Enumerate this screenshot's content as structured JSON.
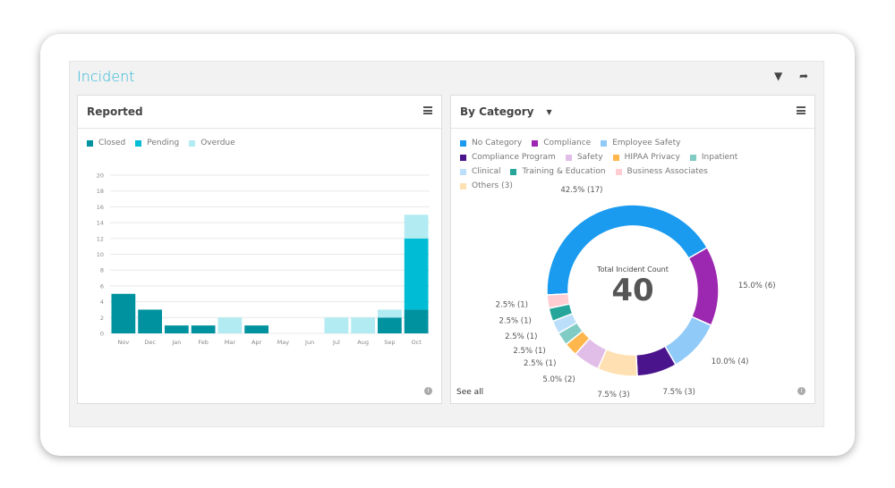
{
  "title": "Incident",
  "icons": {
    "filter": "filter-icon",
    "share": "share-icon"
  },
  "left": {
    "title": "Reported",
    "legend": [
      {
        "label": "Closed",
        "color": "#00929f"
      },
      {
        "label": "Pending",
        "color": "#00bcd4"
      },
      {
        "label": "Overdue",
        "color": "#b2ebf2"
      }
    ]
  },
  "right": {
    "title": "By Category",
    "see_all": "See all",
    "center_label": "Total Incident Count",
    "total": "40",
    "legend": [
      {
        "label": "No Category",
        "color": "#1a9bf0"
      },
      {
        "label": "Compliance",
        "color": "#9c27b0"
      },
      {
        "label": "Employee Safety",
        "color": "#90caf9"
      },
      {
        "label": "Compliance Program",
        "color": "#4a148c"
      },
      {
        "label": "Safety",
        "color": "#e1bee7"
      },
      {
        "label": "HIPAA Privacy",
        "color": "#ffb74d"
      },
      {
        "label": "Inpatient",
        "color": "#80cbc4"
      },
      {
        "label": "Clinical",
        "color": "#bbdefb"
      },
      {
        "label": "Training & Education",
        "color": "#26a69a"
      },
      {
        "label": "Business Associates",
        "color": "#ffcdd2"
      },
      {
        "label": "Others (3)",
        "color": "#ffe0b2"
      }
    ]
  },
  "chart_data": [
    {
      "type": "bar",
      "stacked": true,
      "categories": [
        "Nov",
        "Dec",
        "Jan",
        "Feb",
        "Mar",
        "Apr",
        "May",
        "Jun",
        "Jul",
        "Aug",
        "Sep",
        "Oct"
      ],
      "ylim": [
        0,
        20
      ],
      "yticks": [
        0,
        2,
        4,
        6,
        8,
        10,
        12,
        14,
        16,
        18,
        20
      ],
      "grid": true,
      "legend_position": "top-left",
      "series": [
        {
          "name": "Closed",
          "values": [
            5,
            3,
            1,
            1,
            0,
            1,
            0,
            0,
            0,
            0,
            2,
            3
          ]
        },
        {
          "name": "Pending",
          "values": [
            0,
            0,
            0,
            0,
            0,
            0,
            0,
            0,
            0,
            0,
            0,
            9
          ]
        },
        {
          "name": "Overdue",
          "values": [
            0,
            0,
            0,
            0,
            2,
            0,
            0,
            0,
            2,
            2,
            1,
            3
          ]
        }
      ]
    },
    {
      "type": "pie",
      "donut": true,
      "slices": [
        {
          "name": "No Category",
          "value": 17,
          "label": "42.5% (17)"
        },
        {
          "name": "Compliance",
          "value": 6,
          "label": "15.0% (6)"
        },
        {
          "name": "Employee Safety",
          "value": 4,
          "label": "10.0% (4)"
        },
        {
          "name": "Compliance Program",
          "value": 3,
          "label": "7.5% (3)"
        },
        {
          "name": "Others (3)",
          "value": 3,
          "label": "7.5% (3)"
        },
        {
          "name": "Safety",
          "value": 2,
          "label": "5.0% (2)"
        },
        {
          "name": "HIPAA Privacy",
          "value": 1,
          "label": "2.5% (1)"
        },
        {
          "name": "Inpatient",
          "value": 1,
          "label": "2.5% (1)"
        },
        {
          "name": "Clinical",
          "value": 1,
          "label": "2.5% (1)"
        },
        {
          "name": "Training & Education",
          "value": 1,
          "label": "2.5% (1)"
        },
        {
          "name": "Business Associates",
          "value": 1,
          "label": "2.5% (1)"
        }
      ]
    }
  ]
}
